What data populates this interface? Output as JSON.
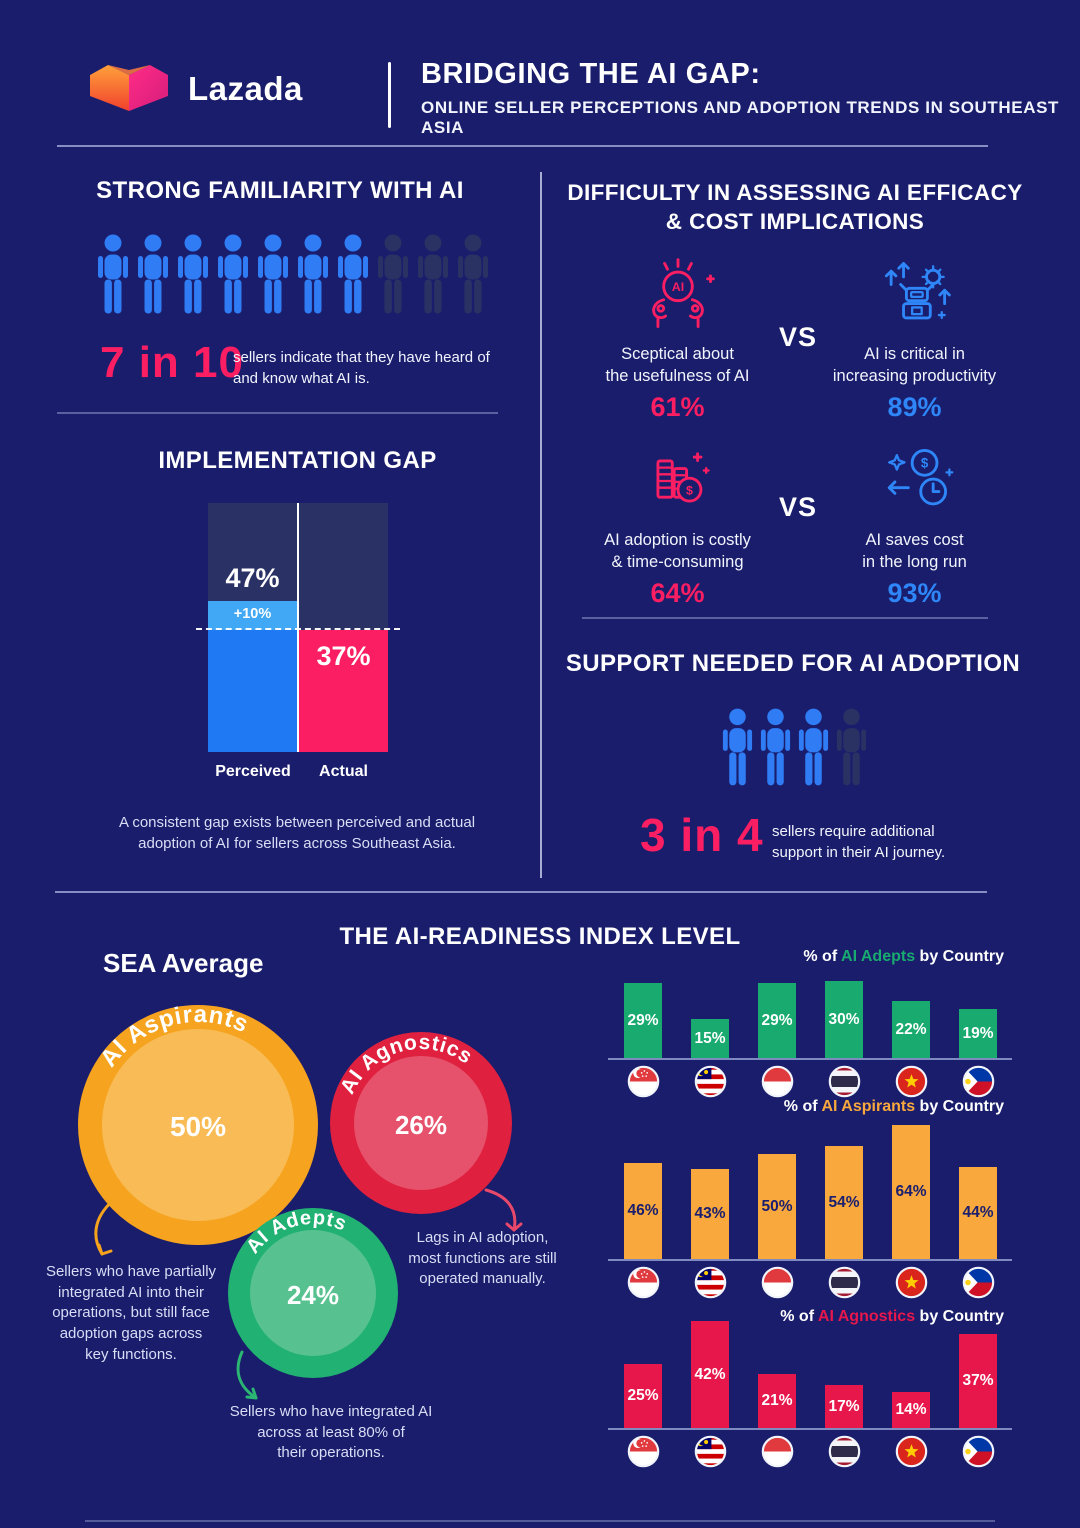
{
  "colors": {
    "background": "#191D6B",
    "panel": "#2A3164",
    "pink": "#FB1E63",
    "blue": "#2E86F8",
    "light_blue_band": "#41A8F5",
    "bar_blue": "#1E79F2",
    "person_active": "#2F7CF5",
    "person_dim": "#2A3163",
    "green": "#18AA6E",
    "orange": "#F8A83C",
    "red": "#E7174B",
    "caption": "#D9DDF6"
  },
  "header": {
    "brand": "Lazada",
    "title": "BRIDGING THE AI GAP:",
    "subtitle": "ONLINE SELLER PERCEPTIONS AND ADOPTION TRENDS IN SOUTHEAST ASIA"
  },
  "familiarity": {
    "title": "STRONG FAMILIARITY WITH AI",
    "stat": "7 in 10",
    "caption": "sellers indicate that they have heard of\nand know what AI is.",
    "highlighted": 7,
    "total": 10
  },
  "difficulty": {
    "title": "DIFFICULTY IN ASSESSING AI EFFICACY\n& COST IMPLICATIONS",
    "vs_label": "VS",
    "comparisons": [
      {
        "left": {
          "icon": "ai-hands-icon",
          "label": "Sceptical about\nthe usefulness of AI",
          "value": "61%"
        },
        "right": {
          "icon": "robot-productivity-icon",
          "label": "AI is critical in\nincreasing productivity",
          "value": "89%"
        }
      },
      {
        "left": {
          "icon": "coin-stack-icon",
          "label": "AI adoption is costly\n& time-consuming",
          "value": "64%"
        },
        "right": {
          "icon": "cost-savings-clock-icon",
          "label": "AI saves cost\nin the long run",
          "value": "93%"
        }
      }
    ]
  },
  "implementation_gap": {
    "title": "IMPLEMENTATION GAP",
    "perceived_label": "Perceived",
    "actual_label": "Actual",
    "perceived_value": "47%",
    "gap_value": "+10%",
    "actual_value": "37%",
    "caption": "A consistent gap exists between perceived and actual\nadoption of AI for sellers across Southeast Asia."
  },
  "support": {
    "title": "SUPPORT NEEDED FOR AI ADOPTION",
    "stat": "3 in 4",
    "caption": "sellers require additional\nsupport in their AI journey.",
    "highlighted": 3,
    "total": 4
  },
  "readiness": {
    "title": "THE AI-READINESS INDEX LEVEL",
    "sea_average_label": "SEA Average",
    "segments": [
      {
        "name": "AI Aspirants",
        "value": "50%",
        "caption": "Sellers who have partially\nintegrated AI into their\noperations, but still face\nadoption gaps across\nkey functions."
      },
      {
        "name": "AI Agnostics",
        "value": "26%",
        "caption": "Lags in AI adoption,\nmost functions are still\noperated manually."
      },
      {
        "name": "AI Adepts",
        "value": "24%",
        "caption": "Sellers who have integrated AI\nacross at least 80% of\ntheir operations."
      }
    ]
  },
  "chart_data": [
    {
      "id": "implementation-gap",
      "type": "bar",
      "title": "IMPLEMENTATION GAP",
      "categories": [
        "Perceived",
        "Actual"
      ],
      "values": [
        47,
        37
      ],
      "gap_annotation": "+10%",
      "bar_colors": [
        "#1E79F2",
        "#FB1E63"
      ]
    },
    {
      "id": "sea-average",
      "type": "pie",
      "title": "SEA Average",
      "labels": [
        "AI Aspirants",
        "AI Agnostics",
        "AI Adepts"
      ],
      "values": [
        50,
        26,
        24
      ],
      "colors": [
        "#F6A41F",
        "#E0203F",
        "#21B173"
      ]
    },
    {
      "id": "adepts-by-country",
      "type": "bar",
      "title": "% of AI Adepts by Country",
      "title_parts": {
        "prefix": "% of",
        "series": "AI Adepts",
        "suffix": "by Country"
      },
      "categories": [
        "Singapore",
        "Malaysia",
        "Indonesia",
        "Thailand",
        "Vietnam",
        "Philippines"
      ],
      "values": [
        29,
        15,
        29,
        30,
        22,
        19
      ],
      "bar_color": "#18AA6E",
      "label_color": "#FFFFFF"
    },
    {
      "id": "aspirants-by-country",
      "type": "bar",
      "title": "% of AI Aspirants by Country",
      "title_parts": {
        "prefix": "% of",
        "series": "AI Aspirants",
        "suffix": "by Country"
      },
      "categories": [
        "Singapore",
        "Malaysia",
        "Indonesia",
        "Thailand",
        "Vietnam",
        "Philippines"
      ],
      "values": [
        46,
        43,
        50,
        54,
        64,
        44
      ],
      "bar_color": "#F8A83C",
      "label_color": "#1A1E6E"
    },
    {
      "id": "agnostics-by-country",
      "type": "bar",
      "title": "% of AI Agnostics by Country",
      "title_parts": {
        "prefix": "% of",
        "series": "AI Agnostics",
        "suffix": "by Country"
      },
      "categories": [
        "Singapore",
        "Malaysia",
        "Indonesia",
        "Thailand",
        "Vietnam",
        "Philippines"
      ],
      "values": [
        25,
        42,
        21,
        17,
        14,
        37
      ],
      "bar_color": "#E7174B",
      "label_color": "#FFFFFF"
    }
  ]
}
